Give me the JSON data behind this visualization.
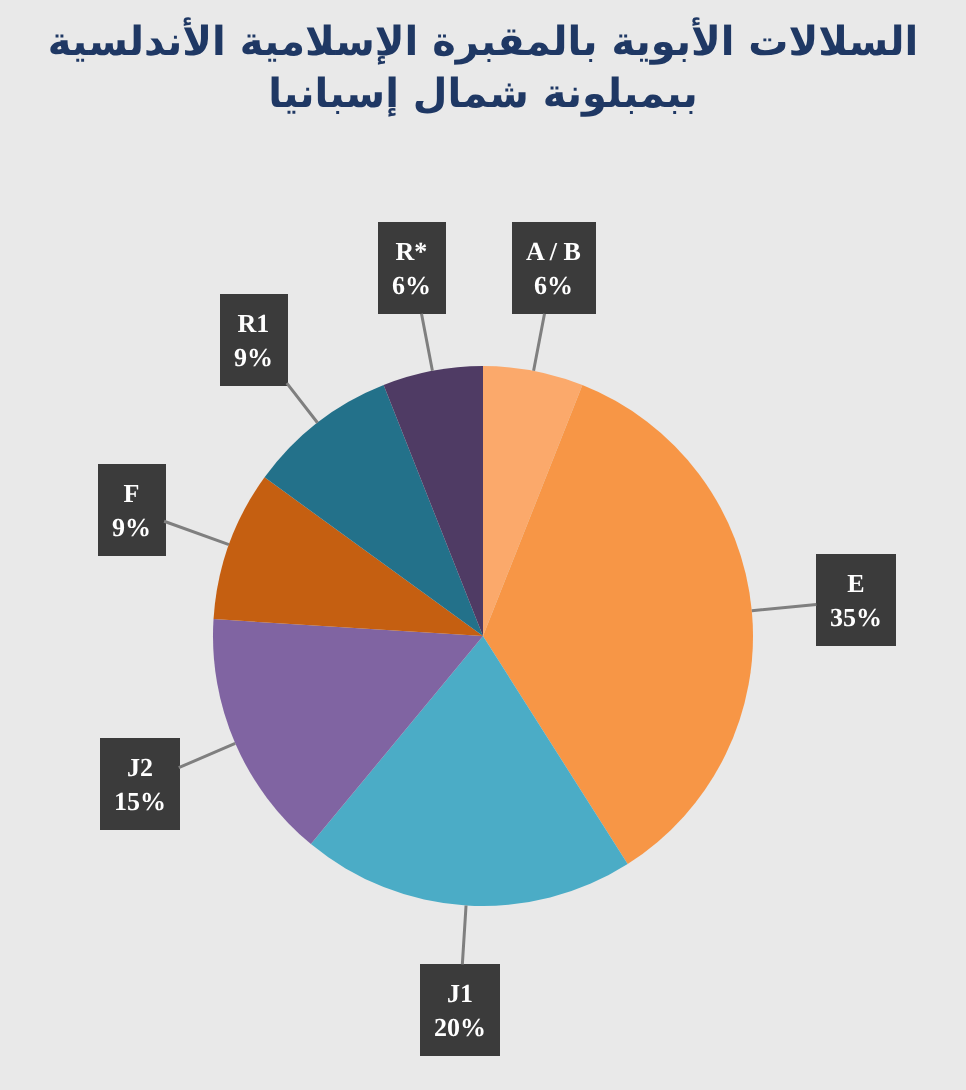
{
  "chart_data": {
    "type": "pie",
    "title": "السلالات الأبوية بالمقبرة الإسلامية الأندلسية\nببمبلونة شمال إسبانيا",
    "categories": [
      "A / B",
      "E",
      "J1",
      "J2",
      "F",
      "R1",
      "R*"
    ],
    "values": [
      6,
      35,
      20,
      15,
      9,
      9,
      6
    ],
    "value_labels": [
      "6%",
      "35%",
      "20%",
      "15%",
      "9%",
      "9%",
      "6%"
    ],
    "colors": [
      "#fba96b",
      "#f79646",
      "#4bacc6",
      "#8064a2",
      "#c55f11",
      "#23718a",
      "#4f3b64"
    ]
  }
}
